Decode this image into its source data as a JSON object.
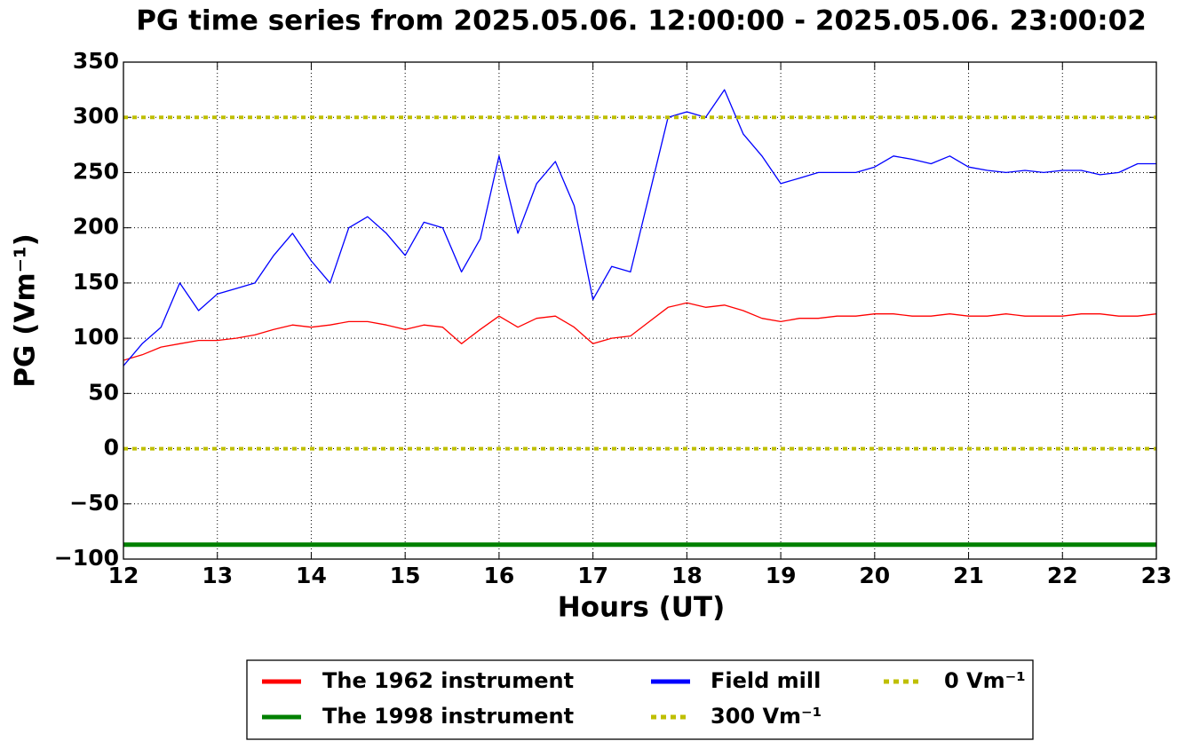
{
  "chart_data": {
    "type": "line",
    "title": "PG time series from 2025.05.06. 12:00:00 - 2025.05.06. 23:00:02",
    "x_label": "Hours (UT)",
    "y_label": "PG (Vm⁻¹)",
    "xlim": [
      12,
      23
    ],
    "xticks": [
      12,
      13,
      14,
      15,
      16,
      17,
      18,
      19,
      20,
      21,
      22,
      23
    ],
    "ylim": [
      -100,
      350
    ],
    "yticks": [
      {
        "value": -100,
        "label": "−100"
      },
      {
        "value": -50,
        "label": "−50"
      },
      0,
      50,
      100,
      150,
      200,
      250,
      300,
      350
    ],
    "grid": true,
    "legend": "below",
    "x": [
      12.0,
      12.2,
      12.4,
      12.6,
      12.8,
      13.0,
      13.2,
      13.4,
      13.6,
      13.8,
      14.0,
      14.2,
      14.4,
      14.6,
      14.8,
      15.0,
      15.2,
      15.4,
      15.6,
      15.8,
      16.0,
      16.2,
      16.4,
      16.6,
      16.8,
      17.0,
      17.2,
      17.4,
      17.6,
      17.8,
      18.0,
      18.2,
      18.4,
      18.6,
      18.8,
      19.0,
      19.2,
      19.4,
      19.6,
      19.8,
      20.0,
      20.2,
      20.4,
      20.6,
      20.8,
      21.0,
      21.2,
      21.4,
      21.6,
      21.8,
      22.0,
      22.2,
      22.4,
      22.6,
      22.8,
      23.0
    ],
    "series": [
      {
        "name": "The 1962 instrument",
        "color": "#ff0000",
        "linewidth": 1.3,
        "values": [
          80,
          85,
          92,
          95,
          98,
          98,
          100,
          103,
          108,
          112,
          110,
          112,
          115,
          115,
          112,
          108,
          112,
          110,
          95,
          108,
          120,
          110,
          118,
          120,
          110,
          95,
          100,
          102,
          115,
          128,
          132,
          128,
          130,
          125,
          118,
          115,
          118,
          118,
          120,
          120,
          122,
          122,
          120,
          120,
          122,
          120,
          120,
          122,
          120,
          120,
          120,
          122,
          122,
          120,
          120,
          122
        ]
      },
      {
        "name": "The 1998 instrument",
        "color": "#008000",
        "linewidth": 5,
        "x": [
          12,
          23
        ],
        "values": [
          -87,
          -87
        ]
      },
      {
        "name": "Field mill",
        "color": "#0000ff",
        "linewidth": 1.3,
        "values": [
          75,
          95,
          110,
          150,
          125,
          140,
          145,
          150,
          175,
          195,
          170,
          150,
          200,
          210,
          195,
          175,
          205,
          200,
          160,
          190,
          265,
          195,
          240,
          260,
          220,
          135,
          165,
          160,
          230,
          300,
          305,
          300,
          325,
          285,
          265,
          240,
          245,
          250,
          250,
          250,
          255,
          265,
          262,
          258,
          265,
          255,
          252,
          250,
          252,
          250,
          252,
          252,
          248,
          250,
          258,
          258
        ]
      },
      {
        "name": "300 Vm⁻¹",
        "color": "#bfbf00",
        "linewidth": 4,
        "linestyle": "dotted",
        "x": [
          12,
          23
        ],
        "values": [
          300,
          300
        ]
      },
      {
        "name": "0 Vm⁻¹",
        "color": "#bfbf00",
        "linewidth": 4,
        "linestyle": "dotted",
        "x": [
          12,
          23
        ],
        "values": [
          0,
          0
        ]
      }
    ]
  }
}
